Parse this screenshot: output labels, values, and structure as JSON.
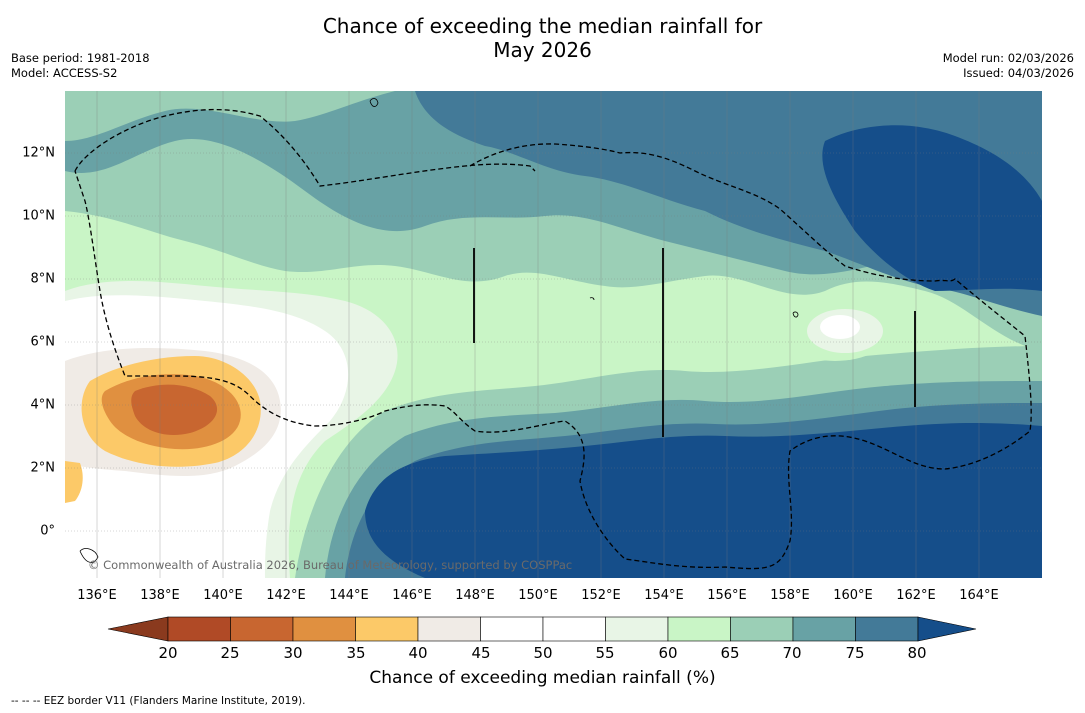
{
  "title_line1": "Chance of exceeding the median rainfall for",
  "title_line2": "May 2026",
  "base_period": "Base period: 1981-2018",
  "model": "Model: ACCESS-S2",
  "model_run": "Model run: 02/03/2026",
  "issued": "Issued: 04/03/2026",
  "copyright": "© Commonwealth of Australia 2026, Bureau of Meteorology, supported by COSPPac",
  "footer": "--  --  -- EEZ border V11 (Flanders Marine Institute, 2019).",
  "x_ticks": [
    "136°E",
    "138°E",
    "140°E",
    "142°E",
    "144°E",
    "146°E",
    "148°E",
    "150°E",
    "152°E",
    "154°E",
    "156°E",
    "158°E",
    "160°E",
    "162°E",
    "164°E"
  ],
  "y_ticks": [
    "12°N",
    "10°N",
    "8°N",
    "6°N",
    "4°N",
    "2°N",
    "0°"
  ],
  "colorbar": {
    "title": "Chance of exceeding median rainfall (%)",
    "ticks": [
      "20",
      "25",
      "30",
      "35",
      "40",
      "45",
      "50",
      "55",
      "60",
      "65",
      "70",
      "75",
      "80"
    ],
    "colors": [
      "#8a3a1e",
      "#b04a26",
      "#c86630",
      "#e09040",
      "#fcc968",
      "#f0ebe6",
      "#ffffff",
      "#ffffff",
      "#e8f5e6",
      "#c9f5c6",
      "#9bcfb6",
      "#68a2a5",
      "#437a98",
      "#154e8a"
    ]
  },
  "chart_data": {
    "type": "map",
    "variable": "Chance of exceeding the median rainfall (%)",
    "period": "May 2026",
    "lon_range": [
      135,
      166
    ],
    "lat_range": [
      -1.5,
      14
    ],
    "bins": [
      20,
      25,
      30,
      35,
      40,
      45,
      50,
      55,
      60,
      65,
      70,
      75,
      80
    ],
    "regions": [
      {
        "name": "dry centre near 138-139°E 4°N",
        "value_range": [
          25,
          30
        ]
      },
      {
        "name": "wet band south of 3°N, 146-165°E",
        "value_range": [
          80,
          100
        ]
      },
      {
        "name": "wet area north-east, 157-166°E 9-12°N",
        "value_range": [
          80,
          100
        ]
      }
    ]
  }
}
